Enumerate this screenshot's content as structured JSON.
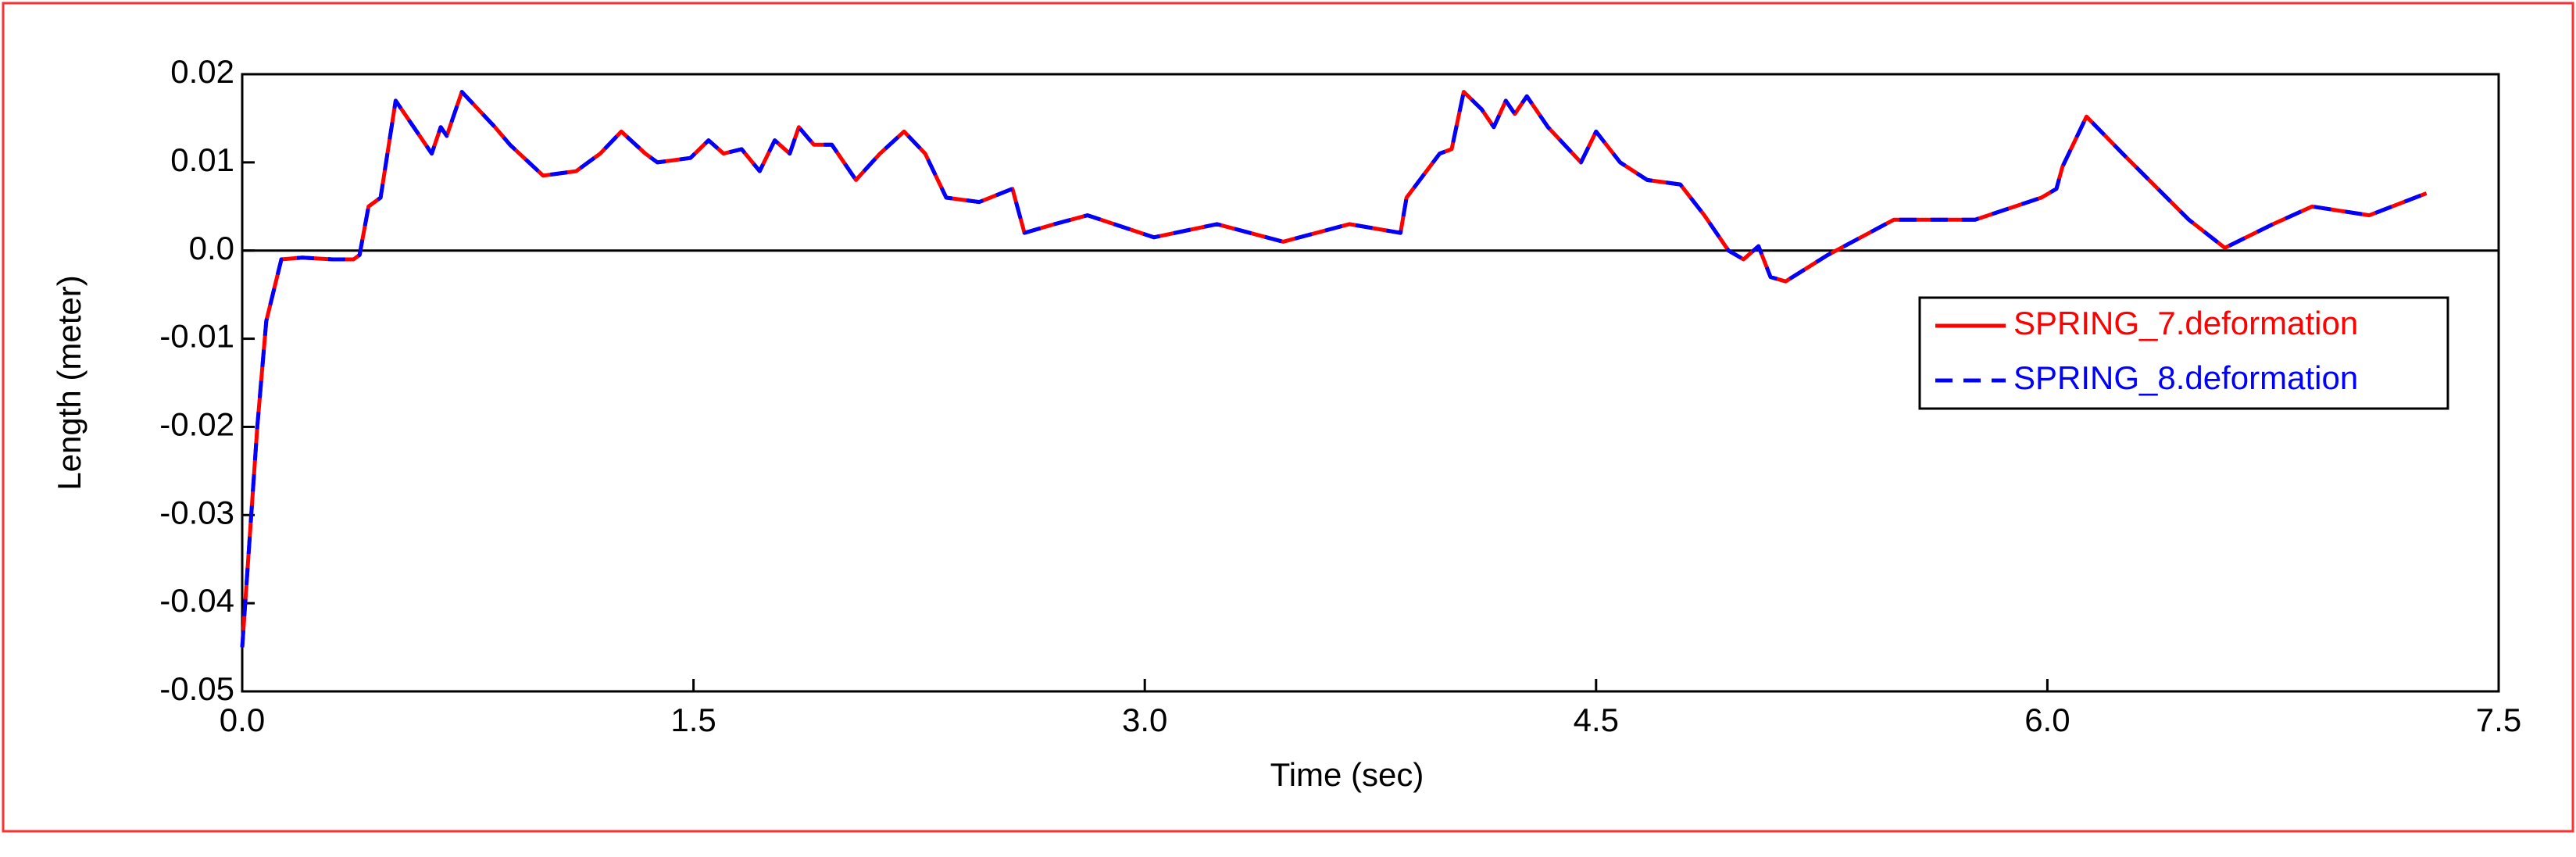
{
  "chart_data": {
    "type": "line",
    "xlabel": "Time (sec)",
    "ylabel": "Length (meter)",
    "x": [
      0,
      0.02,
      0.05,
      0.08,
      0.13,
      0.2,
      0.3,
      0.37,
      0.39,
      0.42,
      0.46,
      0.51,
      0.57,
      0.63,
      0.66,
      0.68,
      0.73,
      0.84,
      0.89,
      1.0,
      1.11,
      1.19,
      1.26,
      1.34,
      1.38,
      1.49,
      1.55,
      1.6,
      1.66,
      1.72,
      1.77,
      1.82,
      1.85,
      1.9,
      1.96,
      2.04,
      2.12,
      2.2,
      2.27,
      2.34,
      2.45,
      2.56,
      2.6,
      2.7,
      2.81,
      3.03,
      3.24,
      3.46,
      3.68,
      3.85,
      3.87,
      3.98,
      4.02,
      4.06,
      4.12,
      4.16,
      4.2,
      4.23,
      4.27,
      4.34,
      4.45,
      4.5,
      4.58,
      4.67,
      4.78,
      4.86,
      4.94,
      4.99,
      5.04,
      5.08,
      5.13,
      5.27,
      5.49,
      5.76,
      5.98,
      6.03,
      6.05,
      6.13,
      6.25,
      6.47,
      6.59,
      6.75,
      6.88,
      7.07,
      7.26
    ],
    "series": [
      {
        "name": "SPRING_7.deformation",
        "color": "#ff0000",
        "dash": false,
        "values": [
          -0.045,
          -0.035,
          -0.02,
          -0.008,
          -0.001,
          -0.0008,
          -0.001,
          -0.001,
          -0.0005,
          0.005,
          0.006,
          0.017,
          0.014,
          0.011,
          0.014,
          0.013,
          0.018,
          0.014,
          0.012,
          0.0085,
          0.009,
          0.011,
          0.0135,
          0.011,
          0.01,
          0.0105,
          0.0125,
          0.011,
          0.0115,
          0.009,
          0.0125,
          0.011,
          0.014,
          0.012,
          0.012,
          0.008,
          0.011,
          0.0135,
          0.011,
          0.006,
          0.0055,
          0.007,
          0.002,
          0.003,
          0.004,
          0.0015,
          0.003,
          0.001,
          0.003,
          0.002,
          0.006,
          0.011,
          0.0115,
          0.018,
          0.016,
          0.014,
          0.017,
          0.0155,
          0.0175,
          0.014,
          0.01,
          0.0135,
          0.01,
          0.008,
          0.0075,
          0.004,
          0.0,
          -0.001,
          0.0005,
          -0.003,
          -0.0035,
          -0.0005,
          0.0035,
          0.0035,
          0.006,
          0.007,
          0.0095,
          0.0152,
          0.011,
          0.0035,
          0.0003,
          0.003,
          0.005,
          0.004,
          0.0065
        ]
      },
      {
        "name": "SPRING_8.deformation",
        "color": "#0000ff",
        "dash": true,
        "values": [
          -0.045,
          -0.035,
          -0.02,
          -0.008,
          -0.001,
          -0.0008,
          -0.001,
          -0.001,
          -0.0005,
          0.005,
          0.006,
          0.017,
          0.014,
          0.011,
          0.014,
          0.013,
          0.018,
          0.014,
          0.012,
          0.0085,
          0.009,
          0.011,
          0.0135,
          0.011,
          0.01,
          0.0105,
          0.0125,
          0.011,
          0.0115,
          0.009,
          0.0125,
          0.011,
          0.014,
          0.012,
          0.012,
          0.008,
          0.011,
          0.0135,
          0.011,
          0.006,
          0.0055,
          0.007,
          0.002,
          0.003,
          0.004,
          0.0015,
          0.003,
          0.001,
          0.003,
          0.002,
          0.006,
          0.011,
          0.0115,
          0.018,
          0.016,
          0.014,
          0.017,
          0.0155,
          0.0175,
          0.014,
          0.01,
          0.0135,
          0.01,
          0.008,
          0.0075,
          0.004,
          0.0,
          -0.001,
          0.0005,
          -0.003,
          -0.0035,
          -0.0005,
          0.0035,
          0.0035,
          0.006,
          0.007,
          0.0095,
          0.0152,
          0.011,
          0.0035,
          0.0003,
          0.003,
          0.005,
          0.004,
          0.0065
        ]
      }
    ],
    "xlim": [
      0,
      7.5
    ],
    "xticks": [
      {
        "value": 0,
        "label": "0.0"
      },
      {
        "value": 1.5,
        "label": "1.5"
      },
      {
        "value": 3,
        "label": "3.0"
      },
      {
        "value": 4.5,
        "label": "4.5"
      },
      {
        "value": 6,
        "label": "6.0"
      },
      {
        "value": 7.5,
        "label": "7.5"
      }
    ],
    "ylim": [
      -0.05,
      0.02
    ],
    "yticks": [
      {
        "value": -0.05,
        "label": "-0.05"
      },
      {
        "value": -0.04,
        "label": "-0.04"
      },
      {
        "value": -0.03,
        "label": "-0.03"
      },
      {
        "value": -0.02,
        "label": "-0.02"
      },
      {
        "value": -0.01,
        "label": "-0.01"
      },
      {
        "value": 0,
        "label": "0.0"
      },
      {
        "value": 0.01,
        "label": "0.01"
      },
      {
        "value": 0.02,
        "label": "0.02"
      }
    ],
    "legend": "right"
  }
}
